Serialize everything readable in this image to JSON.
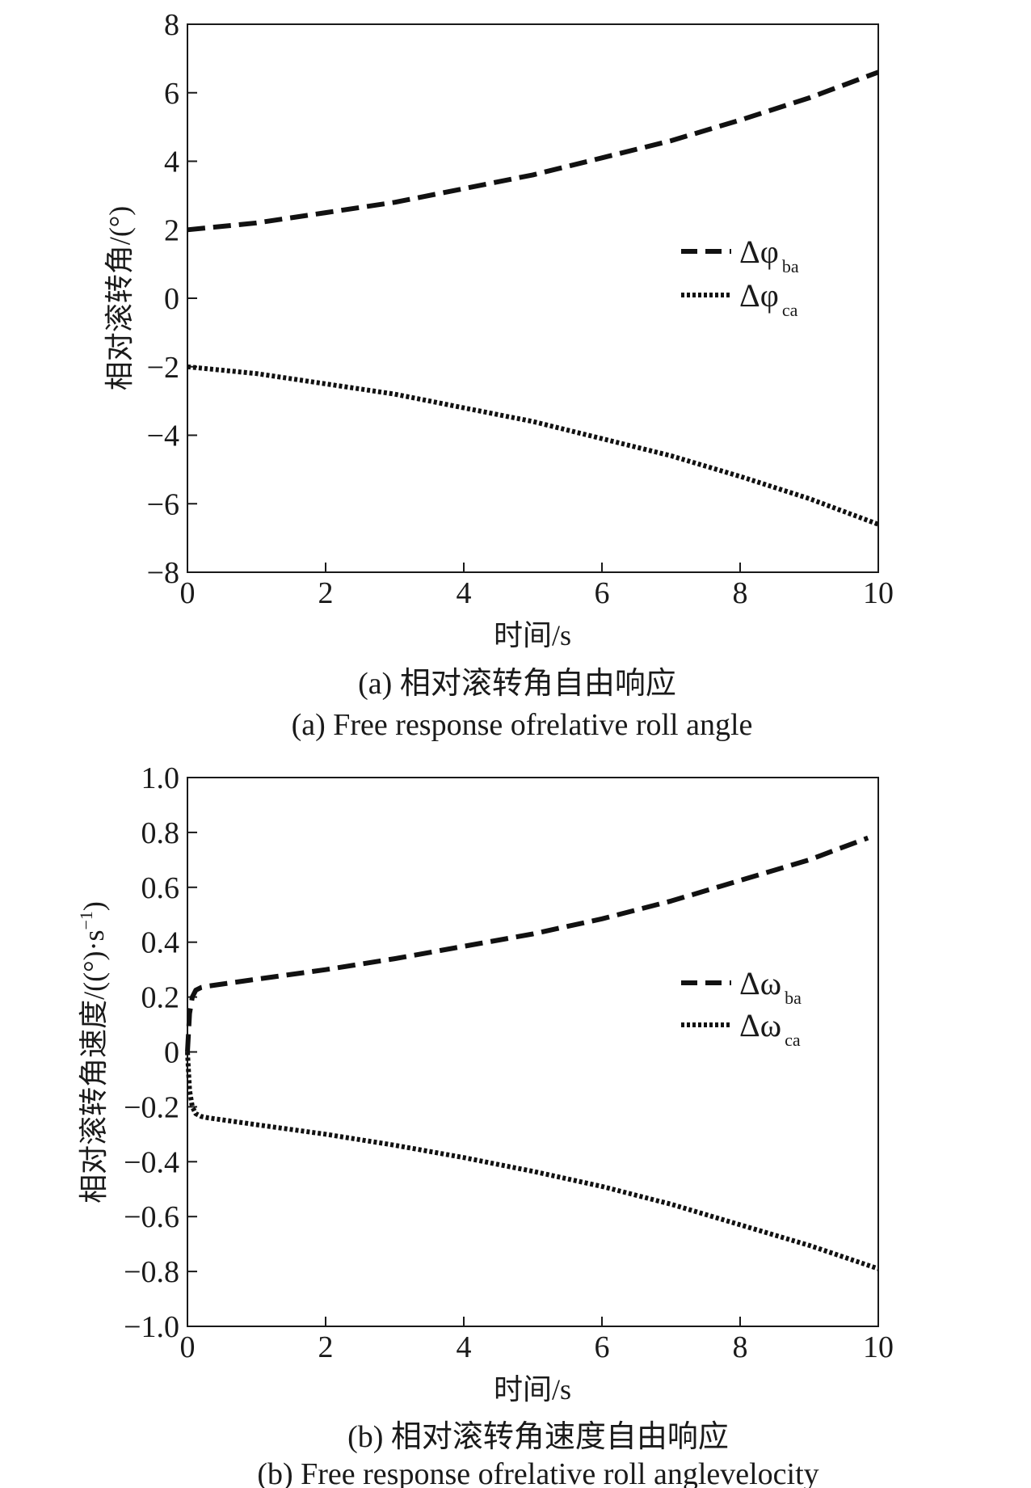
{
  "chart_data": [
    {
      "type": "line",
      "caption_cn": "(a) 相对滚转角自由响应",
      "caption_en": "(a) Free response ofrelative roll angle",
      "xlabel": "时间/s",
      "ylabel": "相对滚转角/(°)",
      "xlim": [
        0,
        10
      ],
      "ylim": [
        -8,
        8
      ],
      "xticks": [
        "0",
        "2",
        "4",
        "6",
        "8",
        "10"
      ],
      "yticks": [
        "−8",
        "−6",
        "−4",
        "−2",
        "0",
        "2",
        "4",
        "6",
        "8"
      ],
      "grid": false,
      "legend_position": "right-middle",
      "series": [
        {
          "name": "Δφ",
          "subscript": "ba",
          "style": "dashed",
          "x": [
            0,
            1,
            2,
            3,
            4,
            5,
            6,
            7,
            8,
            9,
            10
          ],
          "y": [
            2.0,
            2.2,
            2.5,
            2.8,
            3.2,
            3.6,
            4.1,
            4.6,
            5.2,
            5.85,
            6.6
          ]
        },
        {
          "name": "Δφ",
          "subscript": "ca",
          "style": "dotted",
          "x": [
            0,
            1,
            2,
            3,
            4,
            5,
            6,
            7,
            8,
            9,
            10
          ],
          "y": [
            -2.0,
            -2.2,
            -2.5,
            -2.8,
            -3.2,
            -3.6,
            -4.1,
            -4.6,
            -5.2,
            -5.85,
            -6.6
          ]
        }
      ]
    },
    {
      "type": "line",
      "caption_cn": "(b) 相对滚转角速度自由响应",
      "caption_en": "(b) Free response ofrelative roll anglevelocity",
      "xlabel": "时间/s",
      "ylabel": "相对滚转角速度/((°)·s",
      "ylabel_sup": "−1",
      "ylabel_end": ")",
      "xlim": [
        0,
        10
      ],
      "ylim": [
        -1.0,
        1.0
      ],
      "xticks": [
        "0",
        "2",
        "4",
        "6",
        "8",
        "10"
      ],
      "yticks": [
        "−1.0",
        "−0.8",
        "−0.6",
        "−0.4",
        "−0.2",
        "0",
        "0.2",
        "0.4",
        "0.6",
        "0.8",
        "1.0"
      ],
      "grid": false,
      "legend_position": "right-middle",
      "series": [
        {
          "name": "Δω",
          "subscript": "ba",
          "style": "dashed",
          "x": [
            0,
            0.03,
            0.07,
            0.12,
            0.2,
            0.3,
            1,
            2,
            3,
            4,
            5,
            6,
            7,
            8,
            9,
            9.85
          ],
          "y": [
            0,
            0.14,
            0.2,
            0.225,
            0.235,
            0.24,
            0.265,
            0.3,
            0.34,
            0.385,
            0.43,
            0.485,
            0.55,
            0.625,
            0.7,
            0.78
          ]
        },
        {
          "name": "Δω",
          "subscript": "ca",
          "style": "dotted",
          "x": [
            0,
            0.03,
            0.07,
            0.12,
            0.2,
            0.3,
            1,
            2,
            3,
            4,
            5,
            6,
            7,
            8,
            9,
            10
          ],
          "y": [
            0,
            -0.14,
            -0.2,
            -0.225,
            -0.235,
            -0.24,
            -0.265,
            -0.3,
            -0.34,
            -0.385,
            -0.435,
            -0.49,
            -0.555,
            -0.63,
            -0.705,
            -0.79
          ]
        }
      ]
    }
  ]
}
